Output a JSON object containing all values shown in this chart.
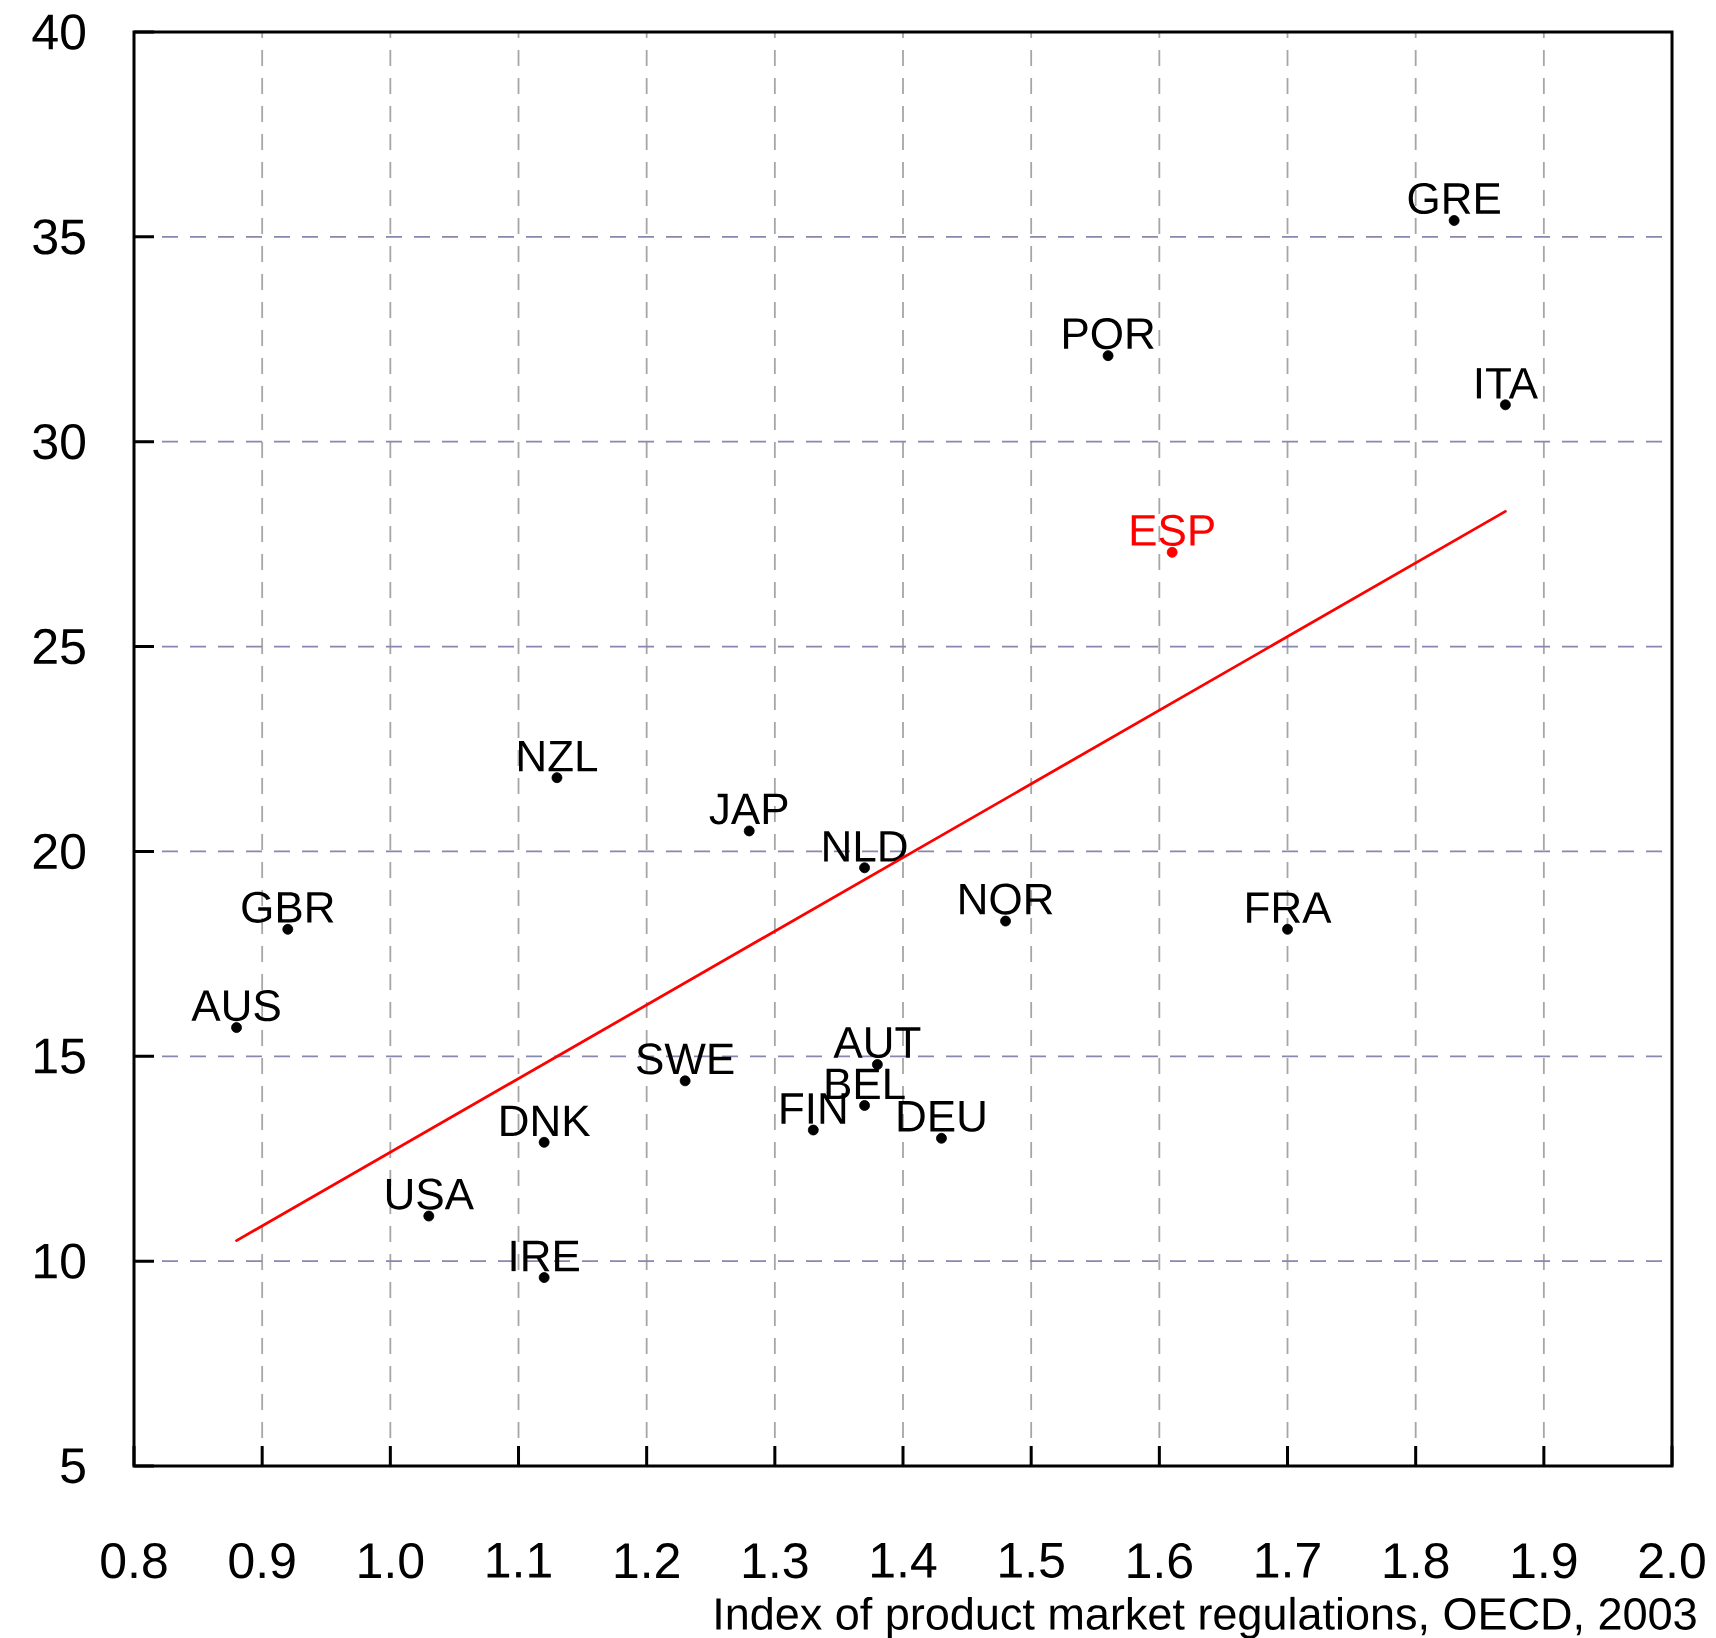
{
  "chart_data": {
    "type": "scatter",
    "xlabel": "Index of product market regulations, OECD, 2003",
    "xlim": [
      0.8,
      2.0
    ],
    "ylim": [
      5,
      40
    ],
    "xticks": [
      0.8,
      0.9,
      {
        "value": 1,
        "label": "1.0"
      },
      1.1,
      1.2,
      1.3,
      1.4,
      1.5,
      1.6,
      1.7,
      1.8,
      1.9,
      {
        "value": 2,
        "label": "2.0"
      }
    ],
    "yticks": [
      5,
      10,
      15,
      20,
      25,
      30,
      35,
      40
    ],
    "grid": true,
    "series": [
      {
        "name": "GRE",
        "color": "#000000",
        "marker": "circle",
        "x": [
          1.83
        ],
        "values": [
          35.4
        ]
      },
      {
        "name": "POR",
        "color": "#000000",
        "marker": "circle",
        "x": [
          1.56
        ],
        "values": [
          32.1
        ]
      },
      {
        "name": "ITA",
        "color": "#000000",
        "marker": "circle",
        "x": [
          1.87
        ],
        "values": [
          30.9
        ]
      },
      {
        "name": "ESP",
        "color": "#ff0000",
        "marker": "circle",
        "x": [
          1.61
        ],
        "values": [
          27.3
        ]
      },
      {
        "name": "NZL",
        "color": "#000000",
        "marker": "circle",
        "x": [
          1.13
        ],
        "values": [
          21.8
        ]
      },
      {
        "name": "JAP",
        "color": "#000000",
        "marker": "circle",
        "x": [
          1.28
        ],
        "values": [
          20.5
        ]
      },
      {
        "name": "NLD",
        "color": "#000000",
        "marker": "circle",
        "x": [
          1.37
        ],
        "values": [
          19.6
        ]
      },
      {
        "name": "NOR",
        "color": "#000000",
        "marker": "circle",
        "x": [
          1.48
        ],
        "values": [
          18.3
        ]
      },
      {
        "name": "GBR",
        "color": "#000000",
        "marker": "circle",
        "x": [
          0.92
        ],
        "values": [
          18.1
        ]
      },
      {
        "name": "FRA",
        "color": "#000000",
        "marker": "circle",
        "x": [
          1.7
        ],
        "values": [
          18.1
        ]
      },
      {
        "name": "AUS",
        "color": "#000000",
        "marker": "circle",
        "x": [
          0.88
        ],
        "values": [
          15.7
        ]
      },
      {
        "name": "AUT",
        "color": "#000000",
        "marker": "circle",
        "x": [
          1.38
        ],
        "values": [
          14.8
        ]
      },
      {
        "name": "SWE",
        "color": "#000000",
        "marker": "circle",
        "x": [
          1.23
        ],
        "values": [
          14.4
        ]
      },
      {
        "name": "BEL",
        "color": "#000000",
        "marker": "circle",
        "x": [
          1.37
        ],
        "values": [
          13.8
        ]
      },
      {
        "name": "FIN",
        "color": "#000000",
        "marker": "circle",
        "x": [
          1.33
        ],
        "values": [
          13.2
        ]
      },
      {
        "name": "DEU",
        "color": "#000000",
        "marker": "circle",
        "x": [
          1.43
        ],
        "values": [
          13.0
        ]
      },
      {
        "name": "DNK",
        "color": "#000000",
        "marker": "circle",
        "x": [
          1.12
        ],
        "values": [
          12.9
        ]
      },
      {
        "name": "USA",
        "color": "#000000",
        "marker": "circle",
        "x": [
          1.03
        ],
        "values": [
          11.1
        ]
      },
      {
        "name": "IRE",
        "color": "#000000",
        "marker": "circle",
        "x": [
          1.12
        ],
        "values": [
          9.6
        ]
      },
      {
        "type": "line",
        "color": "#ff0000",
        "x": [
          0.88,
          1.87
        ],
        "values": [
          10.5,
          28.3
        ]
      }
    ]
  }
}
